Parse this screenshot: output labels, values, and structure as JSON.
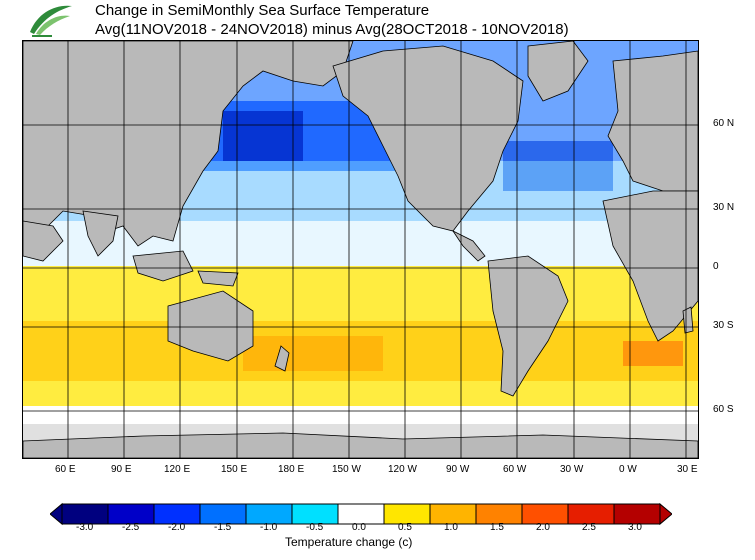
{
  "title": "Change in SemiMonthly Sea Surface Temperature",
  "subtitle": "Avg(11NOV2018 - 24NOV2018) minus Avg(28OCT2018 - 10NOV2018)",
  "lat_labels": [
    "60 N",
    "30 N",
    "0",
    "30 S",
    "60 S"
  ],
  "lon_labels": [
    "60 E",
    "90 E",
    "120 E",
    "150 E",
    "180 E",
    "150 W",
    "120 W",
    "90 W",
    "60 W",
    "30 W",
    "0 W",
    "30 E"
  ],
  "colorbar": {
    "title": "Temperature change  (c)",
    "ticks": [
      "-3.0",
      "-2.5",
      "-2.0",
      "-1.5",
      "-1.0",
      "-0.5",
      "0.0",
      "0.5",
      "1.0",
      "1.5",
      "2.0",
      "2.5",
      "3.0"
    ],
    "colors": [
      "#00007f",
      "#0000c8",
      "#0030ff",
      "#0070ff",
      "#00a8ff",
      "#00e0ff",
      "#ffffff",
      "#ffe600",
      "#ffb400",
      "#ff8200",
      "#ff5000",
      "#e61e00",
      "#b40000"
    ],
    "land_color": "#b9b9b9",
    "ice_color": "#e0e0e0"
  },
  "icons": {
    "logo": "green-leaf-logo-icon"
  }
}
